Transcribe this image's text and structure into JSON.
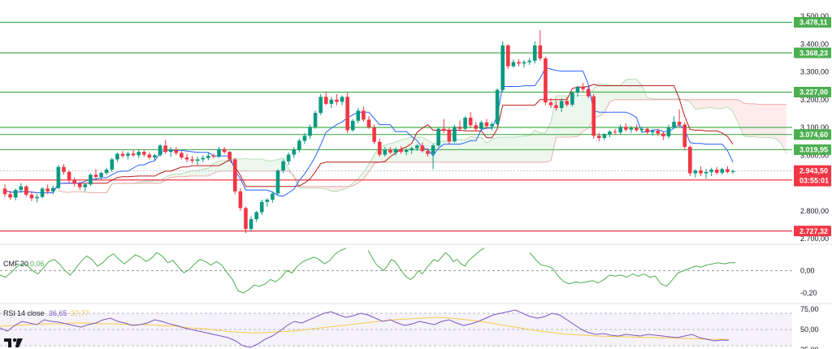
{
  "chart_data": {
    "type": "candlestick",
    "price_axis": {
      "ticks": [
        "3.500,00",
        "3.400,00",
        "3.300,00",
        "3.200,00",
        "3.100,00",
        "3.000,00",
        "2.800,00",
        "2.700,00"
      ],
      "tick_values": [
        3500,
        3400,
        3300,
        3200,
        3100,
        3000,
        2800,
        2700
      ],
      "range": [
        2690,
        3520
      ]
    },
    "horizontal_levels": [
      {
        "label": "3.478,11",
        "value": 3478.11,
        "color": "#4caf50"
      },
      {
        "label": "3.368,23",
        "value": 3368.23,
        "color": "#4caf50"
      },
      {
        "label": "3.227,00",
        "value": 3227.0,
        "color": "#4caf50"
      },
      {
        "label": "3.074,60",
        "value": 3074.6,
        "color": "#4caf50"
      },
      {
        "label": "3.019,95",
        "value": 3019.95,
        "color": "#4caf50"
      },
      {
        "label": "2.910,86",
        "value": 2910.86,
        "color": "#f23645"
      },
      {
        "label": "2.727,32",
        "value": 2727.32,
        "color": "#f23645"
      }
    ],
    "extra_level_lines": [
      {
        "value": 3100
      }
    ],
    "current_price": {
      "label": "2.943,50",
      "value": 2943.5,
      "countdown": "03:55:01",
      "color": "#f23645"
    },
    "candles": [
      [
        2880,
        2895,
        2850,
        2860
      ],
      [
        2860,
        2872,
        2840,
        2848
      ],
      [
        2848,
        2880,
        2838,
        2875
      ],
      [
        2875,
        2900,
        2865,
        2888
      ],
      [
        2888,
        2892,
        2850,
        2858
      ],
      [
        2858,
        2870,
        2835,
        2845
      ],
      [
        2845,
        2860,
        2830,
        2850
      ],
      [
        2850,
        2885,
        2845,
        2880
      ],
      [
        2880,
        2895,
        2860,
        2870
      ],
      [
        2870,
        2890,
        2860,
        2882
      ],
      [
        2882,
        2965,
        2878,
        2958
      ],
      [
        2958,
        2968,
        2930,
        2940
      ],
      [
        2940,
        2945,
        2900,
        2910
      ],
      [
        2910,
        2920,
        2888,
        2898
      ],
      [
        2898,
        2905,
        2875,
        2885
      ],
      [
        2885,
        2900,
        2870,
        2895
      ],
      [
        2895,
        2935,
        2890,
        2930
      ],
      [
        2930,
        2950,
        2915,
        2922
      ],
      [
        2922,
        2940,
        2910,
        2936
      ],
      [
        2936,
        2955,
        2930,
        2948
      ],
      [
        2948,
        2990,
        2940,
        2985
      ],
      [
        2985,
        3010,
        2975,
        3005
      ],
      [
        3005,
        3015,
        2990,
        2998
      ],
      [
        2998,
        3012,
        2985,
        3006
      ],
      [
        3006,
        3018,
        2995,
        3000
      ],
      [
        3000,
        3020,
        2990,
        3012
      ],
      [
        3012,
        3018,
        2995,
        3002
      ],
      [
        3002,
        3010,
        2985,
        2992
      ],
      [
        2992,
        3005,
        2980,
        3000
      ],
      [
        3000,
        3040,
        2995,
        3035
      ],
      [
        3035,
        3055,
        3005,
        3012
      ],
      [
        3012,
        3030,
        2995,
        3020
      ],
      [
        3020,
        3030,
        3000,
        3008
      ],
      [
        3008,
        3015,
        2985,
        2992
      ],
      [
        2992,
        3005,
        2975,
        2985
      ],
      [
        2985,
        2998,
        2970,
        2980
      ],
      [
        2980,
        2995,
        2965,
        2985
      ],
      [
        2985,
        3000,
        2975,
        2990
      ],
      [
        2990,
        3008,
        2982,
        2998
      ],
      [
        2998,
        3006,
        2988,
        2995
      ],
      [
        2995,
        3030,
        2990,
        3022
      ],
      [
        3022,
        3030,
        3005,
        3012
      ],
      [
        3012,
        3015,
        2980,
        2985
      ],
      [
        2985,
        2990,
        2860,
        2870
      ],
      [
        2870,
        2880,
        2800,
        2810
      ],
      [
        2810,
        2815,
        2720,
        2735
      ],
      [
        2735,
        2780,
        2725,
        2770
      ],
      [
        2770,
        2800,
        2760,
        2795
      ],
      [
        2795,
        2840,
        2785,
        2832
      ],
      [
        2832,
        2845,
        2815,
        2840
      ],
      [
        2840,
        2870,
        2830,
        2862
      ],
      [
        2862,
        2950,
        2855,
        2945
      ],
      [
        2945,
        2985,
        2935,
        2978
      ],
      [
        2978,
        3010,
        2965,
        3002
      ],
      [
        3002,
        3030,
        2990,
        3020
      ],
      [
        3020,
        3060,
        3010,
        3052
      ],
      [
        3052,
        3080,
        3040,
        3070
      ],
      [
        3070,
        3110,
        3060,
        3102
      ],
      [
        3102,
        3160,
        3095,
        3152
      ],
      [
        3152,
        3220,
        3145,
        3210
      ],
      [
        3210,
        3230,
        3180,
        3185
      ],
      [
        3185,
        3210,
        3170,
        3200
      ],
      [
        3200,
        3220,
        3180,
        3192
      ],
      [
        3192,
        3215,
        3180,
        3210
      ],
      [
        3210,
        3225,
        3080,
        3090
      ],
      [
        3090,
        3130,
        3085,
        3124
      ],
      [
        3124,
        3170,
        3115,
        3160
      ],
      [
        3160,
        3175,
        3120,
        3128
      ],
      [
        3128,
        3140,
        3095,
        3100
      ],
      [
        3100,
        3110,
        3040,
        3048
      ],
      [
        3048,
        3060,
        2995,
        3002
      ],
      [
        3002,
        3030,
        2995,
        3020
      ],
      [
        3020,
        3030,
        3005,
        3010
      ],
      [
        3010,
        3028,
        3000,
        3022
      ],
      [
        3022,
        3032,
        3005,
        3012
      ],
      [
        3012,
        3025,
        3000,
        3018
      ],
      [
        3018,
        3030,
        3005,
        3025
      ],
      [
        3025,
        3040,
        3015,
        3035
      ],
      [
        3035,
        3045,
        3010,
        3015
      ],
      [
        3015,
        3025,
        2995,
        3005
      ],
      [
        3005,
        3040,
        2950,
        3035
      ],
      [
        3035,
        3100,
        3030,
        3095
      ],
      [
        3095,
        3130,
        3080,
        3090
      ],
      [
        3090,
        3100,
        3040,
        3050
      ],
      [
        3050,
        3110,
        3045,
        3102
      ],
      [
        3102,
        3125,
        3085,
        3095
      ],
      [
        3095,
        3140,
        3090,
        3135
      ],
      [
        3135,
        3155,
        3100,
        3108
      ],
      [
        3108,
        3120,
        3085,
        3095
      ],
      [
        3095,
        3125,
        3090,
        3118
      ],
      [
        3118,
        3130,
        3095,
        3105
      ],
      [
        3105,
        3120,
        3090,
        3112
      ],
      [
        3112,
        3240,
        3105,
        3235
      ],
      [
        3235,
        3410,
        3230,
        3395
      ],
      [
        3395,
        3400,
        3310,
        3320
      ],
      [
        3320,
        3345,
        3315,
        3335
      ],
      [
        3335,
        3345,
        3320,
        3330
      ],
      [
        3330,
        3342,
        3315,
        3335
      ],
      [
        3335,
        3350,
        3325,
        3340
      ],
      [
        3340,
        3410,
        3330,
        3395
      ],
      [
        3395,
        3450,
        3340,
        3348
      ],
      [
        3348,
        3355,
        3180,
        3190
      ],
      [
        3190,
        3205,
        3170,
        3180
      ],
      [
        3180,
        3195,
        3160,
        3170
      ],
      [
        3170,
        3205,
        3155,
        3195
      ],
      [
        3195,
        3210,
        3175,
        3182
      ],
      [
        3182,
        3230,
        3175,
        3225
      ],
      [
        3225,
        3250,
        3210,
        3245
      ],
      [
        3245,
        3260,
        3225,
        3238
      ],
      [
        3238,
        3245,
        3205,
        3212
      ],
      [
        3212,
        3220,
        3060,
        3070
      ],
      [
        3070,
        3080,
        3050,
        3062
      ],
      [
        3062,
        3080,
        3055,
        3075
      ],
      [
        3075,
        3090,
        3065,
        3085
      ],
      [
        3085,
        3095,
        3075,
        3082
      ],
      [
        3082,
        3110,
        3075,
        3102
      ],
      [
        3102,
        3115,
        3085,
        3092
      ],
      [
        3092,
        3105,
        3080,
        3098
      ],
      [
        3098,
        3110,
        3085,
        3090
      ],
      [
        3090,
        3102,
        3080,
        3095
      ],
      [
        3095,
        3100,
        3075,
        3082
      ],
      [
        3082,
        3095,
        3070,
        3088
      ],
      [
        3088,
        3095,
        3070,
        3078
      ],
      [
        3078,
        3085,
        3055,
        3068
      ],
      [
        3068,
        3110,
        3060,
        3100
      ],
      [
        3100,
        3140,
        3095,
        3120
      ],
      [
        3120,
        3165,
        3100,
        3110
      ],
      [
        3110,
        3118,
        3020,
        3030
      ],
      [
        3030,
        3035,
        2925,
        2935
      ],
      [
        2935,
        2950,
        2920,
        2945
      ],
      [
        2945,
        2960,
        2925,
        2935
      ],
      [
        2935,
        2950,
        2915,
        2940
      ],
      [
        2940,
        2955,
        2925,
        2948
      ],
      [
        2948,
        2958,
        2930,
        2937
      ],
      [
        2937,
        2955,
        2930,
        2950
      ],
      [
        2950,
        2960,
        2935,
        2940
      ],
      [
        2940,
        2948,
        2932,
        2943.5
      ]
    ],
    "indicators": [
      {
        "name": "CMF",
        "param": "20",
        "value": "0,06",
        "value_color": "#4caf50",
        "axis_ticks": [
          "0,00",
          "-0,20"
        ],
        "axis_values": [
          0.0,
          -0.2
        ],
        "range": [
          -0.28,
          0.22
        ],
        "series": [
          [
            -0.04,
            -0.06,
            -0.02,
            0.03,
            0.06,
            0.05,
            0.0,
            -0.03,
            0.02,
            0.08,
            0.1,
            0.06,
            0.0,
            -0.04,
            0.02,
            0.08,
            0.13,
            0.1,
            0.04,
            0.07,
            0.12,
            0.15,
            0.1,
            0.06,
            0.1,
            0.14,
            0.12,
            0.08,
            0.11,
            0.16,
            0.13,
            0.07,
            0.09,
            0.03,
            -0.02,
            0.01,
            0.06,
            0.1,
            0.08,
            0.05,
            0.08,
            0.05,
            -0.02,
            -0.08,
            -0.18,
            -0.2,
            -0.17,
            -0.13,
            -0.14,
            -0.12,
            -0.08,
            -0.1,
            -0.06,
            0.0,
            -0.02,
            0.04,
            0.08,
            0.1,
            0.12,
            0.1,
            0.06,
            0.09,
            0.15,
            0.18,
            0.2
          ],
          [
            0.18,
            0.12,
            0.06,
            0.03,
            0.0,
            0.04,
            0.1,
            0.08,
            0.03,
            -0.02,
            -0.06,
            -0.08,
            -0.05,
            0.0,
            -0.03,
            0.02,
            0.06,
            0.1,
            0.08,
            0.12,
            0.16,
            0.13,
            0.08,
            0.1,
            0.06,
            0.04,
            0.09,
            0.12,
            0.15,
            0.18,
            0.2
          ],
          [
            0.16,
            0.1,
            0.05,
            0.04,
            0.02,
            -0.05,
            -0.1,
            -0.12,
            -0.1,
            -0.11,
            -0.1,
            -0.09,
            -0.11,
            -0.08,
            -0.04,
            -0.05,
            -0.04,
            -0.06,
            -0.03,
            -0.05,
            -0.03,
            -0.06,
            -0.05,
            -0.12,
            -0.14,
            -0.08,
            -0.02,
            0.0,
            0.02,
            0.04,
            0.03,
            0.05,
            0.06,
            0.07,
            0.06,
            0.07,
            0.07
          ]
        ]
      },
      {
        "name": "RSI",
        "param": "14 close",
        "value": "36,65",
        "ma_value": "37,77",
        "value_color": "#7e57c2",
        "ma_color": "#f7c948",
        "axis_ticks": [
          "75,00",
          "50,00",
          "25,00"
        ],
        "axis_values": [
          75,
          50,
          25
        ],
        "range": [
          26,
          80
        ],
        "rsi": [
          52,
          48,
          55,
          60,
          58,
          56,
          62,
          60,
          59,
          57,
          55,
          53,
          56,
          58,
          62,
          64,
          60,
          58,
          55,
          56,
          58,
          62,
          60,
          57,
          55,
          52,
          50,
          48,
          46,
          44,
          42,
          40,
          36,
          30,
          28,
          32,
          38,
          42,
          48,
          55,
          60,
          58,
          62,
          66,
          70,
          72,
          68,
          65,
          67,
          70,
          68,
          64,
          60,
          62,
          58,
          55,
          57,
          60,
          58,
          56,
          60,
          62,
          58,
          55,
          57,
          60,
          64,
          68,
          70,
          72,
          74,
          70,
          66,
          64,
          66,
          70,
          68,
          62,
          56,
          50,
          46,
          44,
          45,
          43,
          42,
          44,
          43,
          42,
          44,
          43,
          42,
          41,
          40,
          42,
          44,
          40,
          38,
          36,
          37,
          36.65
        ],
        "ma": [
          54,
          55,
          56,
          57,
          57,
          58,
          58,
          57,
          57,
          56,
          56,
          55,
          54,
          52,
          51,
          49,
          47,
          46,
          46,
          47,
          48,
          50,
          52,
          54,
          56,
          58,
          60,
          62,
          63,
          64,
          65,
          64,
          62,
          60,
          57,
          54,
          51,
          48,
          46,
          44,
          43,
          42,
          41.5,
          41,
          40.5,
          40,
          39.5,
          39,
          38.5,
          38,
          37.77
        ]
      }
    ]
  }
}
